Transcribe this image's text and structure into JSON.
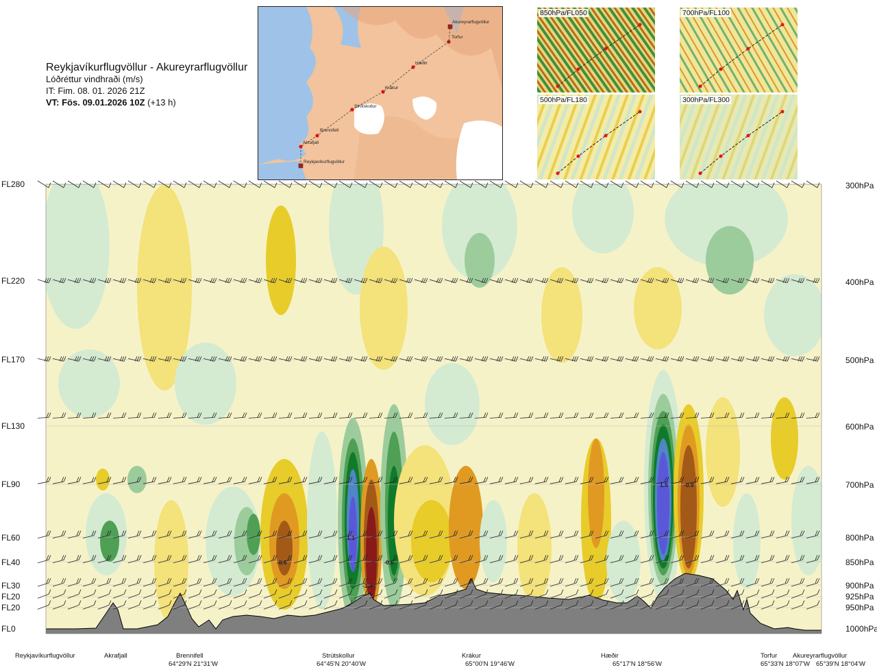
{
  "header": {
    "route": "Reykjavíkurflugvöllur - Akureyrarflugvöllur",
    "field": "Lóðréttur vindhraði (m/s)",
    "issue_time": "IT: Fim. 08. 01. 2026 21Z",
    "valid_time": "VT: Fös. 09.01.2026 10Z",
    "lead": "(+13 h)"
  },
  "map": {
    "points": [
      "Akureyrarflugvöllur",
      "Torfur",
      "Hæðir",
      "Krákur",
      "Strútskollur",
      "Brennifell",
      "Akrafjall",
      "Reykjavíkurflugvöllur"
    ]
  },
  "mini_maps": [
    {
      "label": "850hPa/FL050"
    },
    {
      "label": "700hPa/FL100"
    },
    {
      "label": "500hPa/FL180"
    },
    {
      "label": "300hPa/FL300"
    }
  ],
  "axes": {
    "flight_levels": [
      "FL280",
      "FL220",
      "FL170",
      "FL130",
      "FL90",
      "FL60",
      "FL40",
      "FL30",
      "FL20",
      "FL20",
      "FL0"
    ],
    "pressure_levels": [
      "300hPa",
      "400hPa",
      "500hPa",
      "600hPa",
      "700hPa",
      "800hPa",
      "850hPa",
      "900hPa",
      "925hPa",
      "950hPa",
      "1000hPa"
    ]
  },
  "cross_section_values": [
    "1.1",
    "-0.6",
    "-1.3",
    "0.6",
    "1.5",
    "-0.9"
  ],
  "locations": [
    {
      "name": "Reykjavíkurflugvöllur",
      "coord": ""
    },
    {
      "name": "Akrafjall",
      "coord": ""
    },
    {
      "name": "Brennifell",
      "coord": "64°29'N 21°31'W"
    },
    {
      "name": "Strútskollur",
      "coord": "64°45'N 20°40'W"
    },
    {
      "name": "Krákur",
      "coord": "65°00'N 19°46'W"
    },
    {
      "name": "Hæðir",
      "coord": "65°17'N 18°56'W"
    },
    {
      "name": "Torfur",
      "coord": "65°33'N 18°07'W"
    },
    {
      "name": "Akureyrarflugvöllur",
      "coord": "65°39'N 18°04'W"
    }
  ],
  "colors": {
    "strong_up": "#5a58d8",
    "up_blue": "#4f86c6",
    "up_dark_green": "#0f7a2a",
    "up_green": "#4f9f55",
    "up_mid_green": "#9ccc9c",
    "up_light_green": "#d4ebd2",
    "neutral": "#f6f2c8",
    "down_light": "#f4e27a",
    "down_yellow": "#e8cc2a",
    "down_orange": "#e09a22",
    "down_brown": "#a35a18",
    "strong_down": "#8a1a1a",
    "terrain": "#7f7f7f"
  }
}
